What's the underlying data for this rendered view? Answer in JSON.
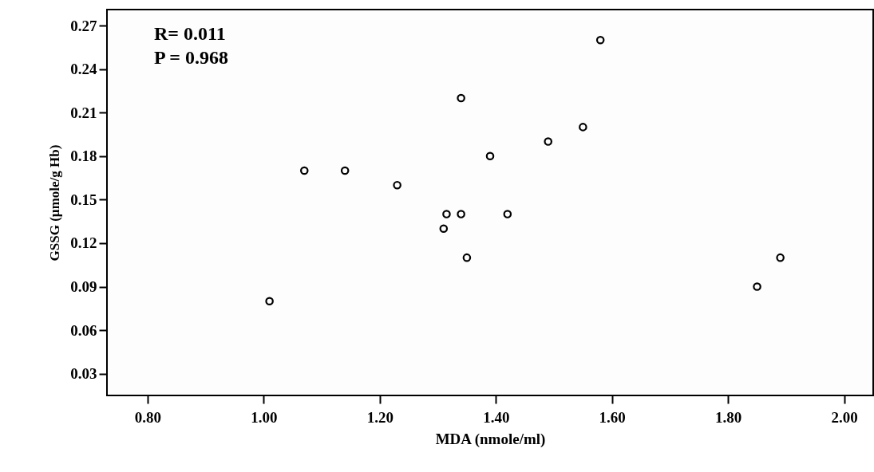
{
  "chart_data": {
    "type": "scatter",
    "xlabel": "MDA (nmole/ml)",
    "ylabel": "GSSG (µmole/g Hb)",
    "annotations": [
      "R= 0.011",
      "P = 0.968"
    ],
    "x": [
      1.01,
      1.07,
      1.14,
      1.23,
      1.315,
      1.34,
      1.31,
      1.35,
      1.42,
      1.34,
      1.39,
      1.49,
      1.55,
      1.58,
      1.89,
      1.85
    ],
    "series": [
      {
        "color": "#000000",
        "values": [
          0.08,
          0.17,
          0.17,
          0.16,
          0.14,
          0.14,
          0.13,
          0.11,
          0.14,
          0.22,
          0.18,
          0.19,
          0.2,
          0.26,
          0.11,
          0.09
        ]
      }
    ],
    "xlim": [
      0.73,
      2.05
    ],
    "ylim": [
      0.015,
      0.281
    ],
    "xticks": [
      {
        "value": 0.8,
        "label": "0.80"
      },
      {
        "value": 1.0,
        "label": "1.00"
      },
      {
        "value": 1.2,
        "label": "1.20"
      },
      {
        "value": 1.4,
        "label": "1.40"
      },
      {
        "value": 1.6,
        "label": "1.60"
      },
      {
        "value": 1.8,
        "label": "1.80"
      },
      {
        "value": 2.0,
        "label": "2.00"
      }
    ],
    "yticks": [
      0.03,
      0.06,
      0.09,
      0.12,
      0.15,
      0.18,
      0.21,
      0.24,
      0.27
    ],
    "marker": "circle",
    "grid": false
  }
}
